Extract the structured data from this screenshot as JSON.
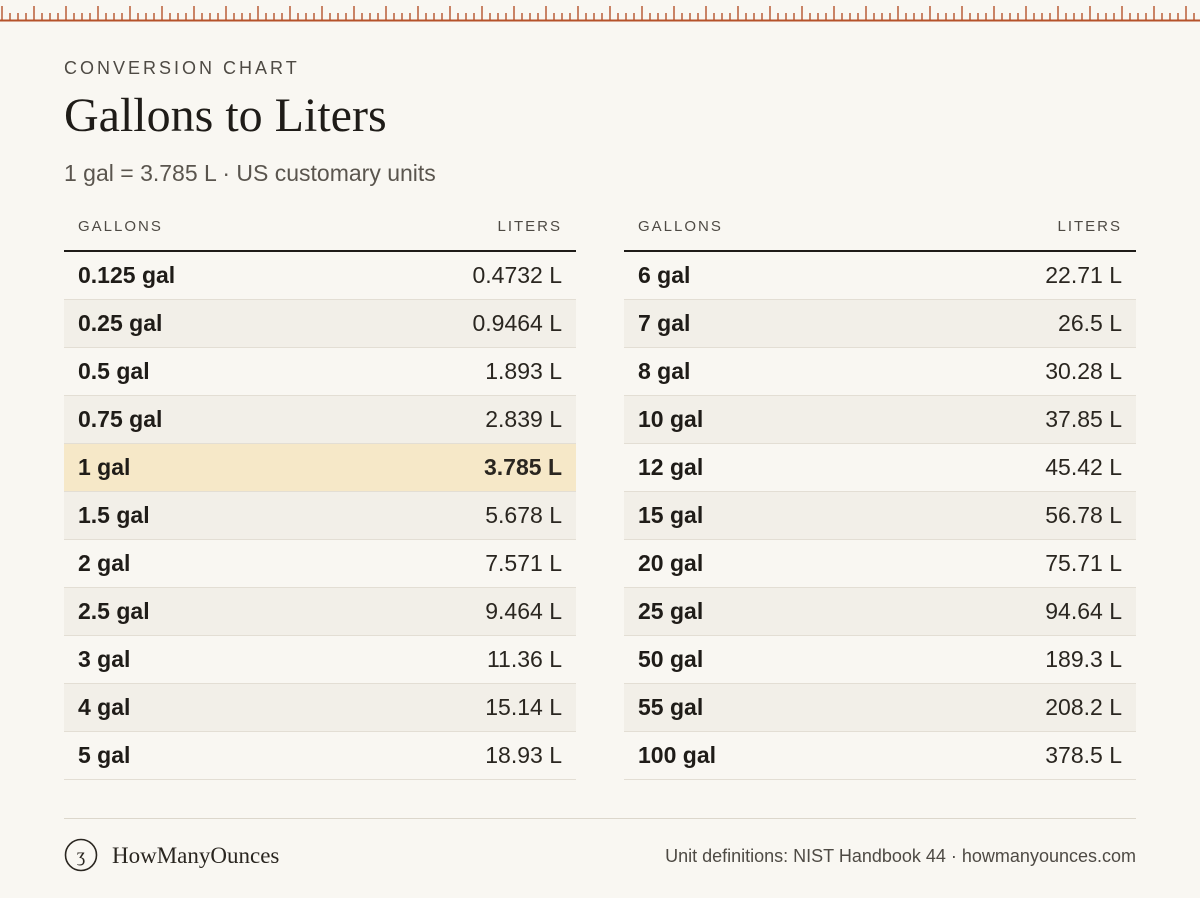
{
  "header": {
    "eyebrow": "CONVERSION CHART",
    "title": "Gallons to Liters",
    "subtitle": "1 gal = 3.785 L · US customary units"
  },
  "table": {
    "col_from": "GALLONS",
    "col_to": "LITERS",
    "highlight_row": "1 gal",
    "left": [
      {
        "gal": "0.125 gal",
        "liters": "0.4732 L"
      },
      {
        "gal": "0.25 gal",
        "liters": "0.9464 L"
      },
      {
        "gal": "0.5 gal",
        "liters": "1.893 L"
      },
      {
        "gal": "0.75 gal",
        "liters": "2.839 L"
      },
      {
        "gal": "1 gal",
        "liters": "3.785 L"
      },
      {
        "gal": "1.5 gal",
        "liters": "5.678 L"
      },
      {
        "gal": "2 gal",
        "liters": "7.571 L"
      },
      {
        "gal": "2.5 gal",
        "liters": "9.464 L"
      },
      {
        "gal": "3 gal",
        "liters": "11.36 L"
      },
      {
        "gal": "4 gal",
        "liters": "15.14 L"
      },
      {
        "gal": "5 gal",
        "liters": "18.93 L"
      }
    ],
    "right": [
      {
        "gal": "6 gal",
        "liters": "22.71 L"
      },
      {
        "gal": "7 gal",
        "liters": "26.5 L"
      },
      {
        "gal": "8 gal",
        "liters": "30.28 L"
      },
      {
        "gal": "10 gal",
        "liters": "37.85 L"
      },
      {
        "gal": "12 gal",
        "liters": "45.42 L"
      },
      {
        "gal": "15 gal",
        "liters": "56.78 L"
      },
      {
        "gal": "20 gal",
        "liters": "75.71 L"
      },
      {
        "gal": "25 gal",
        "liters": "94.64 L"
      },
      {
        "gal": "50 gal",
        "liters": "189.3 L"
      },
      {
        "gal": "55 gal",
        "liters": "208.2 L"
      },
      {
        "gal": "100 gal",
        "liters": "378.5 L"
      }
    ]
  },
  "footer": {
    "brand": "HowManyOunces",
    "logo_icon": "ring-logo-icon",
    "source": "Unit definitions: NIST Handbook 44 · howmanyounces.com"
  },
  "colors": {
    "accent": "#b5522a",
    "highlight": "#f6e8c8",
    "background": "#f9f7f2"
  }
}
